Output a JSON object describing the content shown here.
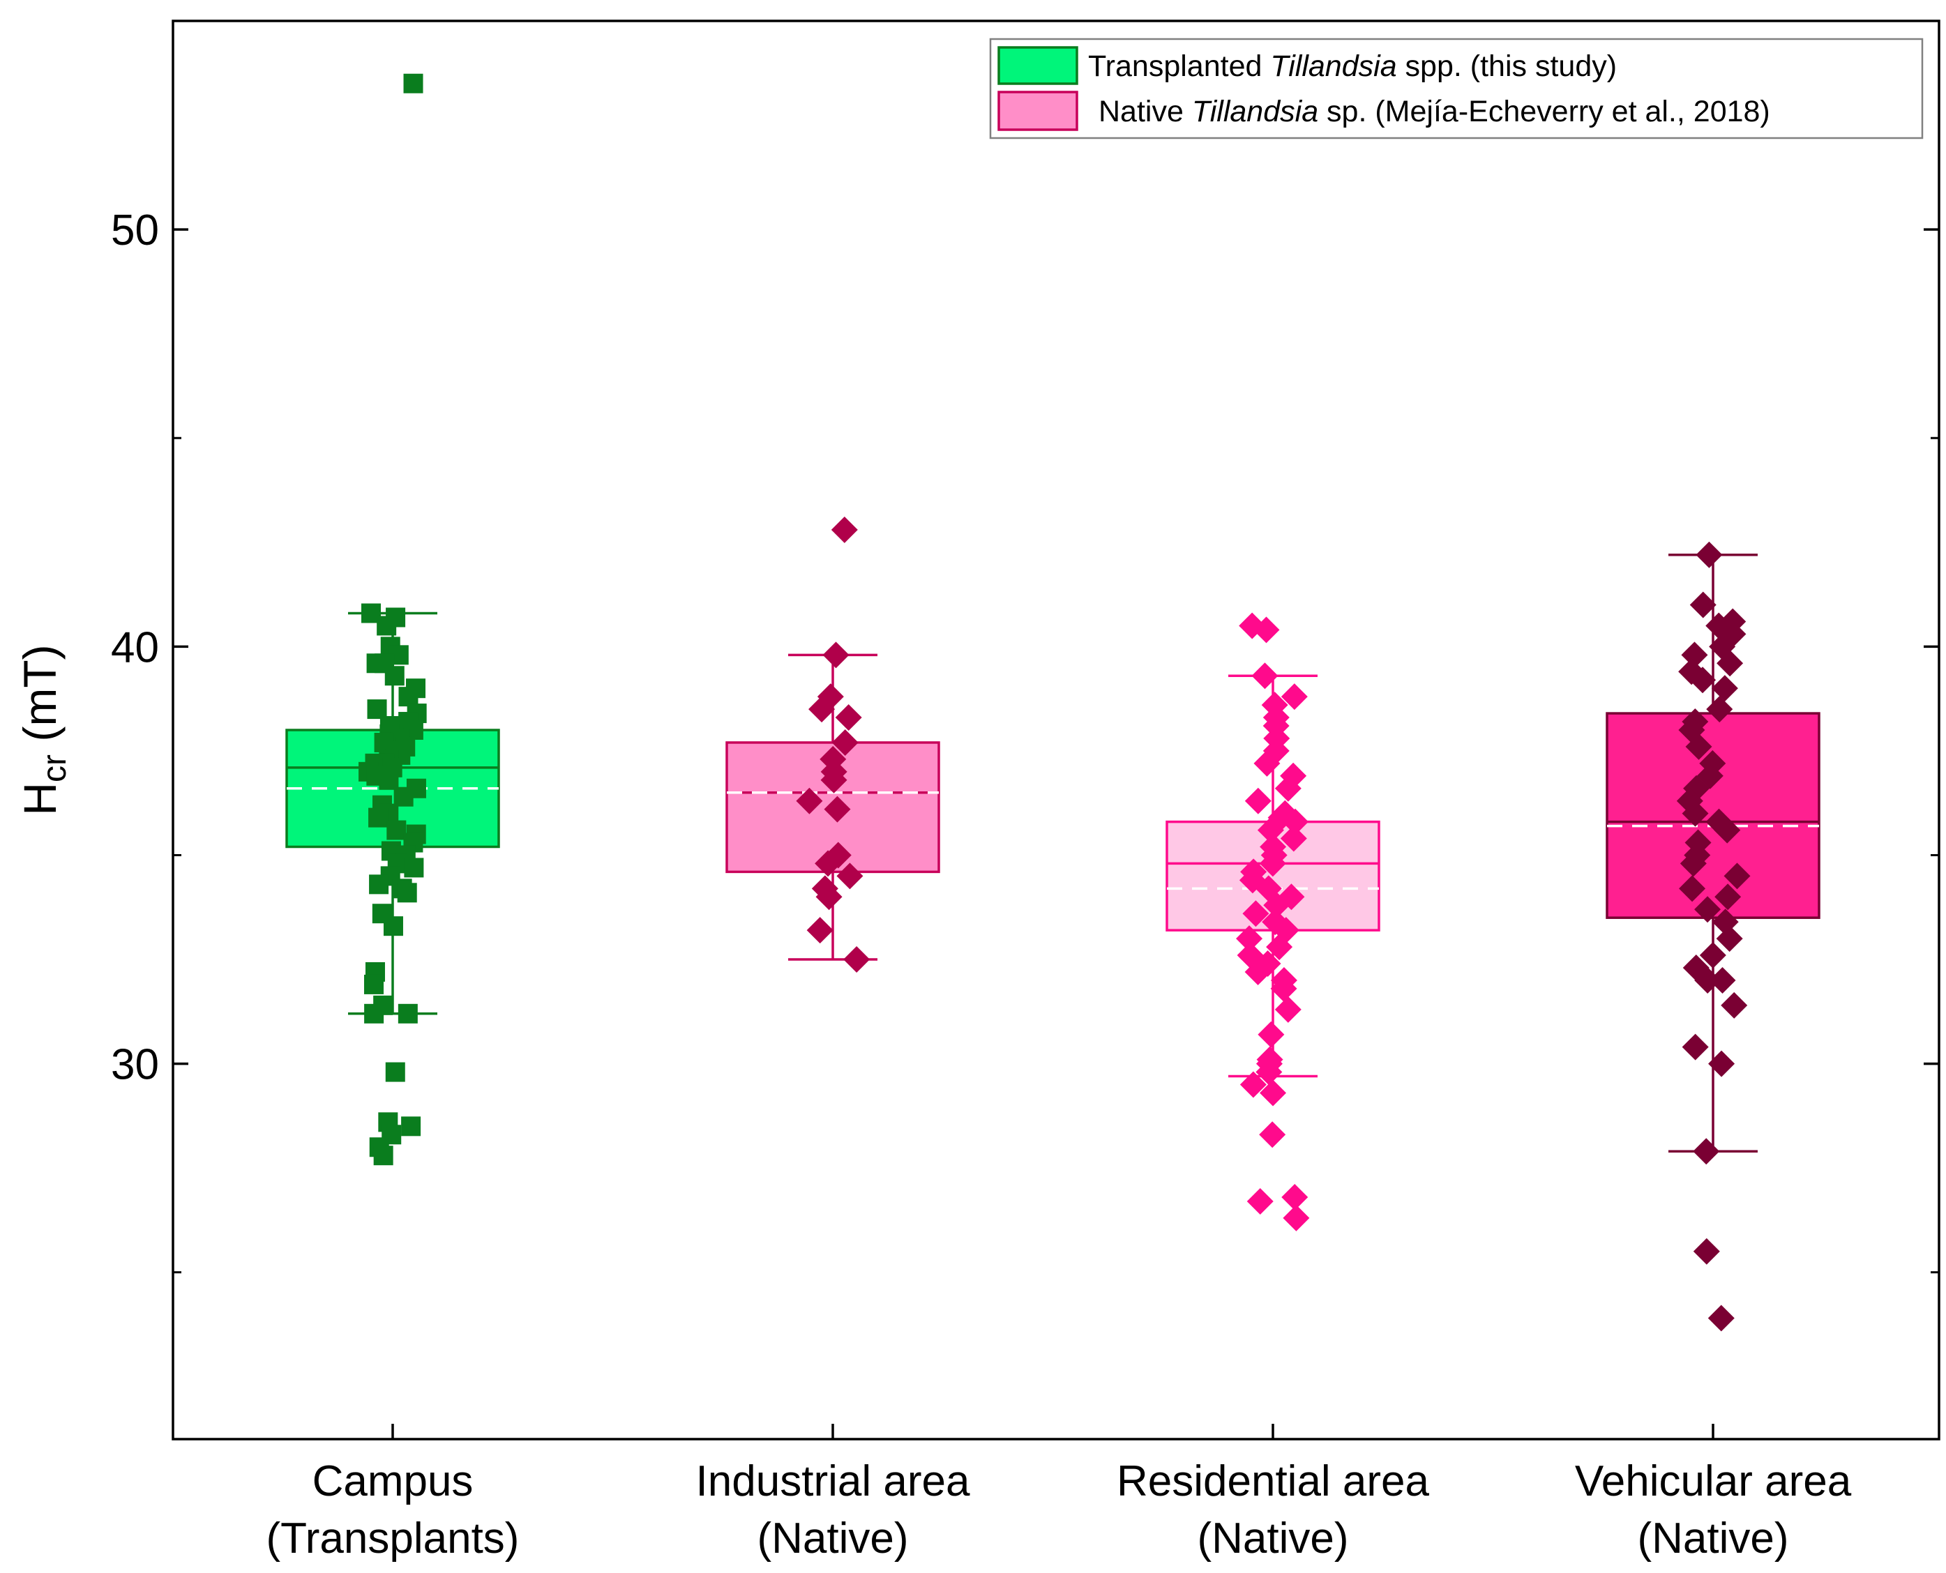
{
  "chart_data": {
    "type": "box",
    "ylabel": {
      "main": "H",
      "sub": "cr",
      "unit": " (mT)"
    },
    "ylim": [
      21,
      55
    ],
    "yticks_major": [
      30,
      40,
      50
    ],
    "yticks_minor": [
      25,
      35,
      45
    ],
    "categories": [
      {
        "line1": "Campus",
        "line2": "(Transplants)"
      },
      {
        "line1": "Industrial area",
        "line2": "(Native)"
      },
      {
        "line1": "Residential area",
        "line2": "(Native)"
      },
      {
        "line1": "Vehicular area",
        "line2": "(Native)"
      }
    ],
    "legend": [
      {
        "prefix": "Transplanted ",
        "italic": "Tillandsia",
        "suffix": " spp. (this study)",
        "fill": "#00f57a",
        "stroke": "#0a7d1e"
      },
      {
        "prefix": "Native ",
        "italic": "Tillandsia",
        "suffix": " sp. (Mejía-Echeverry et al., 2018)",
        "fill": "#ff8ec8",
        "stroke": "#c8005a"
      }
    ],
    "series": [
      {
        "name": "Campus (Transplants)",
        "marker": "square",
        "box": {
          "q1": 35.2,
          "median": 37.1,
          "q3": 38.0,
          "mean": 36.6,
          "whisker_low": 31.2,
          "whisker_high": 40.8
        },
        "box_fill": "#00f57a",
        "box_stroke": "#0a7d1e",
        "point_color": "#0a7d1e",
        "points": [
          53.5,
          40.8,
          40.7,
          40.5,
          40.0,
          39.8,
          39.6,
          39.6,
          39.3,
          39.0,
          38.8,
          38.5,
          38.4,
          38.2,
          38.1,
          38.0,
          37.9,
          37.8,
          37.7,
          37.6,
          37.5,
          37.4,
          37.3,
          37.2,
          37.2,
          37.1,
          37.0,
          36.9,
          36.8,
          36.6,
          36.4,
          36.2,
          36.0,
          35.9,
          35.6,
          35.5,
          35.3,
          35.1,
          35.0,
          34.8,
          34.7,
          34.5,
          34.3,
          34.2,
          34.1,
          33.6,
          33.3,
          32.2,
          31.9,
          31.4,
          31.2,
          31.2,
          29.8,
          28.6,
          28.5,
          28.3,
          28.0,
          27.8
        ]
      },
      {
        "name": "Industrial area (Native)",
        "marker": "diamond",
        "box": {
          "q1": 34.6,
          "median": 36.5,
          "q3": 37.7,
          "mean": 36.5,
          "whisker_low": 32.5,
          "whisker_high": 39.8
        },
        "box_fill": "#ff8ec8",
        "box_stroke": "#c8005a",
        "point_color": "#b0004a",
        "points": [
          42.8,
          39.8,
          38.8,
          38.5,
          38.3,
          37.7,
          37.3,
          37.0,
          36.8,
          36.3,
          36.1,
          35.0,
          34.8,
          34.5,
          34.2,
          34.0,
          33.2,
          32.5
        ]
      },
      {
        "name": "Residential area (Native)",
        "marker": "diamond",
        "box": {
          "q1": 33.2,
          "median": 34.8,
          "q3": 35.8,
          "mean": 34.2,
          "whisker_low": 29.7,
          "whisker_high": 39.3
        },
        "box_fill": "#ffc8e6",
        "box_stroke": "#ff0a8c",
        "point_color": "#ff0a8c",
        "points": [
          40.5,
          40.4,
          39.3,
          38.8,
          38.6,
          38.3,
          38.1,
          37.8,
          37.5,
          37.2,
          36.9,
          36.6,
          36.3,
          36.0,
          35.9,
          35.8,
          35.6,
          35.4,
          35.2,
          35.0,
          34.8,
          34.6,
          34.4,
          34.2,
          34.0,
          33.8,
          33.6,
          33.4,
          33.2,
          33.0,
          32.8,
          32.6,
          32.4,
          32.2,
          32.0,
          31.8,
          31.3,
          30.7,
          30.1,
          30.0,
          29.8,
          29.5,
          29.3,
          28.3,
          26.8,
          26.7,
          26.3
        ]
      },
      {
        "name": "Vehicular area (Native)",
        "marker": "diamond",
        "box": {
          "q1": 33.5,
          "median": 35.8,
          "q3": 38.4,
          "mean": 35.7,
          "whisker_low": 27.9,
          "whisker_high": 42.2
        },
        "box_fill": "#ff2090",
        "box_stroke": "#7a0033",
        "point_color": "#7a0033",
        "points": [
          42.2,
          41.0,
          40.6,
          40.5,
          40.3,
          40.0,
          39.8,
          39.6,
          39.4,
          39.2,
          39.0,
          38.5,
          38.2,
          38.0,
          37.6,
          37.2,
          36.9,
          36.6,
          36.3,
          36.0,
          35.8,
          35.6,
          35.3,
          35.0,
          34.8,
          34.5,
          34.2,
          34.0,
          33.7,
          33.4,
          33.0,
          32.6,
          32.3,
          32.0,
          32.0,
          31.4,
          30.4,
          30.0,
          27.9,
          25.5,
          23.9
        ]
      }
    ]
  }
}
